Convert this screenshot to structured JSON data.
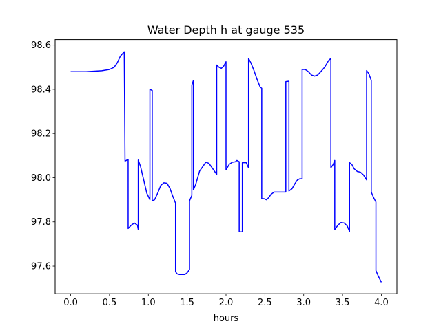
{
  "chart_data": {
    "type": "line",
    "title": "Water Depth h at gauge 535",
    "xlabel": "hours",
    "ylabel": "",
    "xlim": [
      -0.2,
      4.2
    ],
    "ylim": [
      97.475,
      98.625
    ],
    "xticks": [
      0.0,
      0.5,
      1.0,
      1.5,
      2.0,
      2.5,
      3.0,
      3.5,
      4.0
    ],
    "xtick_labels": [
      "0.0",
      "0.5",
      "1.0",
      "1.5",
      "2.0",
      "2.5",
      "3.0",
      "3.5",
      "4.0"
    ],
    "yticks": [
      97.6,
      97.8,
      98.0,
      98.2,
      98.4,
      98.6
    ],
    "ytick_labels": [
      "97.6",
      "97.8",
      "98.0",
      "98.2",
      "98.4",
      "98.6"
    ],
    "grid": false,
    "legend": "none",
    "series": [
      {
        "color": "#0000ff",
        "points": [
          [
            0.0,
            98.48
          ],
          [
            0.2,
            98.48
          ],
          [
            0.4,
            98.484
          ],
          [
            0.5,
            98.49
          ],
          [
            0.56,
            98.5
          ],
          [
            0.6,
            98.52
          ],
          [
            0.64,
            98.55
          ],
          [
            0.69,
            98.57
          ],
          [
            0.7,
            98.075
          ],
          [
            0.74,
            98.083
          ],
          [
            0.74,
            97.77
          ],
          [
            0.78,
            97.785
          ],
          [
            0.82,
            97.795
          ],
          [
            0.86,
            97.785
          ],
          [
            0.87,
            97.765
          ],
          [
            0.87,
            98.08
          ],
          [
            0.9,
            98.05
          ],
          [
            0.94,
            97.99
          ],
          [
            0.98,
            97.93
          ],
          [
            1.02,
            97.9
          ],
          [
            1.02,
            98.4
          ],
          [
            1.05,
            98.395
          ],
          [
            1.05,
            97.895
          ],
          [
            1.08,
            97.9
          ],
          [
            1.12,
            97.93
          ],
          [
            1.16,
            97.965
          ],
          [
            1.2,
            97.977
          ],
          [
            1.24,
            97.975
          ],
          [
            1.28,
            97.95
          ],
          [
            1.31,
            97.92
          ],
          [
            1.35,
            97.885
          ],
          [
            1.35,
            97.575
          ],
          [
            1.37,
            97.565
          ],
          [
            1.4,
            97.562
          ],
          [
            1.47,
            97.562
          ],
          [
            1.5,
            97.57
          ],
          [
            1.53,
            97.585
          ],
          [
            1.53,
            97.895
          ],
          [
            1.56,
            97.92
          ],
          [
            1.56,
            98.42
          ],
          [
            1.58,
            98.44
          ],
          [
            1.58,
            97.945
          ],
          [
            1.61,
            97.97
          ],
          [
            1.66,
            98.03
          ],
          [
            1.7,
            98.05
          ],
          [
            1.74,
            98.07
          ],
          [
            1.78,
            98.065
          ],
          [
            1.83,
            98.04
          ],
          [
            1.88,
            98.015
          ],
          [
            1.88,
            98.51
          ],
          [
            1.91,
            98.5
          ],
          [
            1.94,
            98.495
          ],
          [
            1.97,
            98.505
          ],
          [
            2.0,
            98.525
          ],
          [
            2.0,
            98.035
          ],
          [
            2.04,
            98.06
          ],
          [
            2.08,
            98.07
          ],
          [
            2.12,
            98.072
          ],
          [
            2.14,
            98.078
          ],
          [
            2.17,
            98.072
          ],
          [
            2.17,
            97.755
          ],
          [
            2.21,
            97.755
          ],
          [
            2.21,
            98.068
          ],
          [
            2.26,
            98.068
          ],
          [
            2.29,
            98.045
          ],
          [
            2.29,
            98.54
          ],
          [
            2.32,
            98.52
          ],
          [
            2.36,
            98.485
          ],
          [
            2.4,
            98.445
          ],
          [
            2.44,
            98.41
          ],
          [
            2.46,
            98.405
          ],
          [
            2.46,
            97.905
          ],
          [
            2.49,
            97.905
          ],
          [
            2.52,
            97.9
          ],
          [
            2.55,
            97.91
          ],
          [
            2.58,
            97.925
          ],
          [
            2.62,
            97.935
          ],
          [
            2.67,
            97.935
          ],
          [
            2.72,
            97.935
          ],
          [
            2.77,
            97.935
          ],
          [
            2.77,
            98.435
          ],
          [
            2.81,
            98.437
          ],
          [
            2.81,
            97.94
          ],
          [
            2.85,
            97.95
          ],
          [
            2.89,
            97.975
          ],
          [
            2.92,
            97.99
          ],
          [
            2.95,
            97.995
          ],
          [
            2.98,
            97.995
          ],
          [
            2.98,
            98.49
          ],
          [
            3.02,
            98.49
          ],
          [
            3.06,
            98.48
          ],
          [
            3.1,
            98.465
          ],
          [
            3.14,
            98.46
          ],
          [
            3.18,
            98.465
          ],
          [
            3.22,
            98.48
          ],
          [
            3.27,
            98.5
          ],
          [
            3.32,
            98.53
          ],
          [
            3.35,
            98.54
          ],
          [
            3.35,
            98.045
          ],
          [
            3.38,
            98.06
          ],
          [
            3.4,
            98.078
          ],
          [
            3.4,
            97.765
          ],
          [
            3.44,
            97.785
          ],
          [
            3.48,
            97.797
          ],
          [
            3.52,
            97.795
          ],
          [
            3.56,
            97.782
          ],
          [
            3.59,
            97.757
          ],
          [
            3.59,
            98.068
          ],
          [
            3.62,
            98.06
          ],
          [
            3.65,
            98.04
          ],
          [
            3.69,
            98.028
          ],
          [
            3.73,
            98.025
          ],
          [
            3.77,
            98.012
          ],
          [
            3.81,
            97.99
          ],
          [
            3.81,
            98.485
          ],
          [
            3.84,
            98.47
          ],
          [
            3.87,
            98.44
          ],
          [
            3.87,
            97.935
          ],
          [
            3.9,
            97.91
          ],
          [
            3.93,
            97.89
          ],
          [
            3.93,
            97.58
          ],
          [
            3.96,
            97.555
          ],
          [
            4.0,
            97.527
          ]
        ]
      }
    ]
  }
}
